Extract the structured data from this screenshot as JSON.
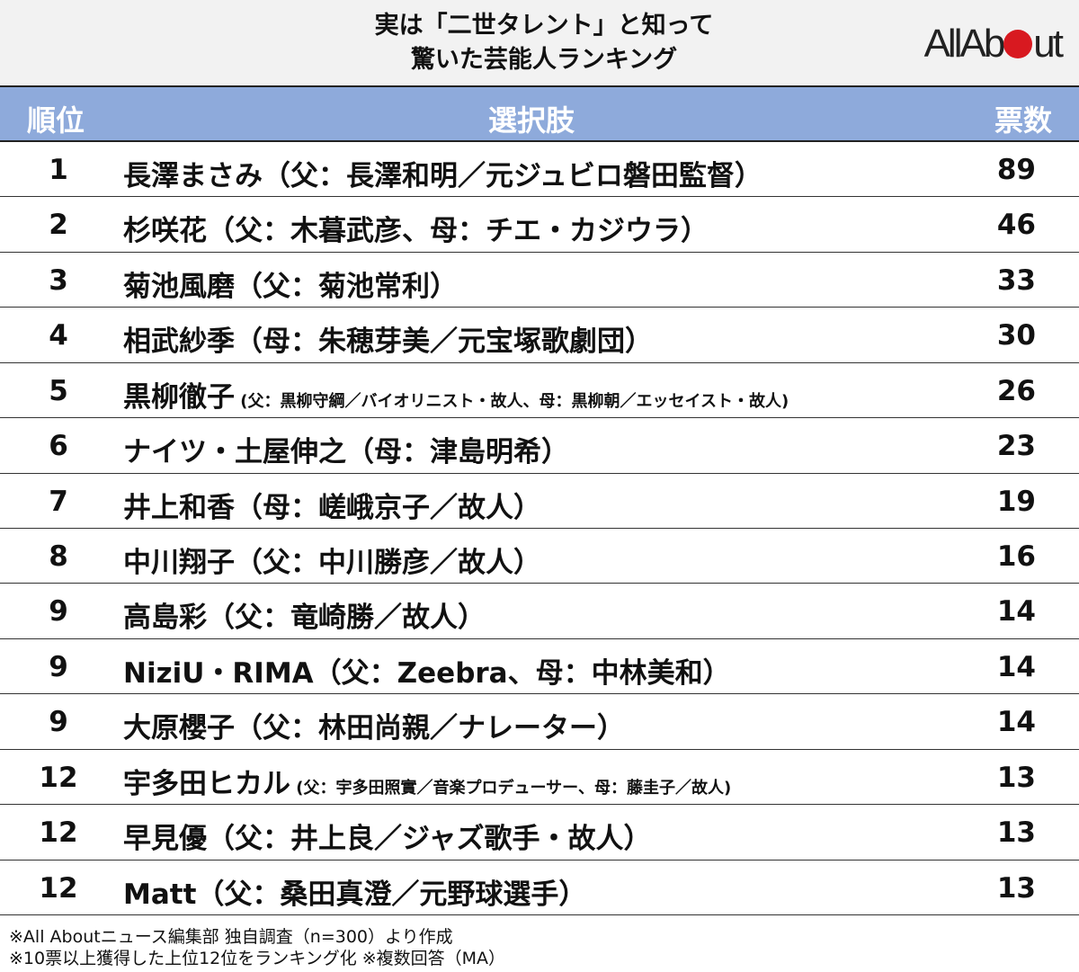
{
  "header": {
    "title_line1": "実は「二世タレント」と知って",
    "title_line2": "驚いた芸能人ランキング",
    "logo": "All About",
    "logo_accent": "#d81920"
  },
  "table": {
    "columns": [
      "順位",
      "選択肢",
      "票数"
    ],
    "header_color": "#8eaadb",
    "rows": [
      {
        "rank": "1",
        "name": "長澤まさみ",
        "note": "（父：長澤和明／元ジュビロ磐田監督）",
        "small": false,
        "votes": "89"
      },
      {
        "rank": "2",
        "name": "杉咲花",
        "note": "（父：木暮武彦、母：チエ・カジウラ）",
        "small": false,
        "votes": "46"
      },
      {
        "rank": "3",
        "name": "菊池風磨",
        "note": "（父：菊池常利）",
        "small": false,
        "votes": "33"
      },
      {
        "rank": "4",
        "name": "相武紗季",
        "note": "（母：朱穂芽美／元宝塚歌劇団）",
        "small": false,
        "votes": "30"
      },
      {
        "rank": "5",
        "name": "黒柳徹子",
        "note": " (父：黒柳守綱／バイオリニスト・故人、母：黒柳朝／エッセイスト・故人)",
        "small": true,
        "votes": "26"
      },
      {
        "rank": "6",
        "name": "ナイツ・土屋伸之",
        "note": "（母：津島明希）",
        "small": false,
        "votes": "23"
      },
      {
        "rank": "7",
        "name": "井上和香",
        "note": "（母：嵯峨京子／故人）",
        "small": false,
        "votes": "19"
      },
      {
        "rank": "8",
        "name": "中川翔子",
        "note": "（父：中川勝彦／故人）",
        "small": false,
        "votes": "16"
      },
      {
        "rank": "9",
        "name": "高島彩",
        "note": "（父：竜崎勝／故人）",
        "small": false,
        "votes": "14"
      },
      {
        "rank": "9",
        "name": "NiziU・RIMA",
        "note": "（父：Zeebra、母：中林美和）",
        "small": false,
        "votes": "14"
      },
      {
        "rank": "9",
        "name": "大原櫻子",
        "note": "（父：林田尚親／ナレーター）",
        "small": false,
        "votes": "14"
      },
      {
        "rank": "12",
        "name": "宇多田ヒカル",
        "note": " (父：宇多田照實／音楽プロデューサー、母：藤圭子／故人)",
        "small": true,
        "votes": "13"
      },
      {
        "rank": "12",
        "name": "早見優",
        "note": "（父：井上良／ジャズ歌手・故人）",
        "small": false,
        "votes": "13"
      },
      {
        "rank": "12",
        "name": "Matt",
        "note": "（父：桑田真澄／元野球選手）",
        "small": false,
        "votes": "13"
      }
    ]
  },
  "footer": {
    "line1": "※All Aboutニュース編集部 独自調査（n=300）より作成",
    "line2": "※10票以上獲得した上位12位をランキング化 ※複数回答（MA）"
  }
}
